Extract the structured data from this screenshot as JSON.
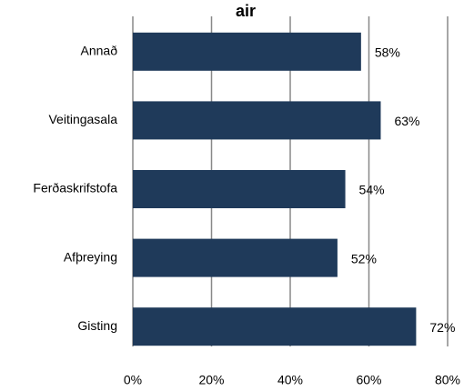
{
  "chart_data": {
    "type": "bar",
    "orientation": "horizontal",
    "title": "air",
    "categories": [
      "Annað",
      "Veitingasala",
      "Ferðaskrifstofa",
      "Afþreying",
      "Gisting"
    ],
    "values": [
      58,
      63,
      54,
      52,
      72
    ],
    "value_labels": [
      "58%",
      "63%",
      "54%",
      "52%",
      "72%"
    ],
    "color": "#1f3a5a",
    "xlim": [
      0,
      80
    ],
    "xticks": [
      {
        "value": 0,
        "label": "0%"
      },
      {
        "value": 20,
        "label": "20%"
      },
      {
        "value": 40,
        "label": "40%"
      },
      {
        "value": 60,
        "label": "60%"
      },
      {
        "value": 80,
        "label": "80%"
      }
    ],
    "grid": true
  }
}
